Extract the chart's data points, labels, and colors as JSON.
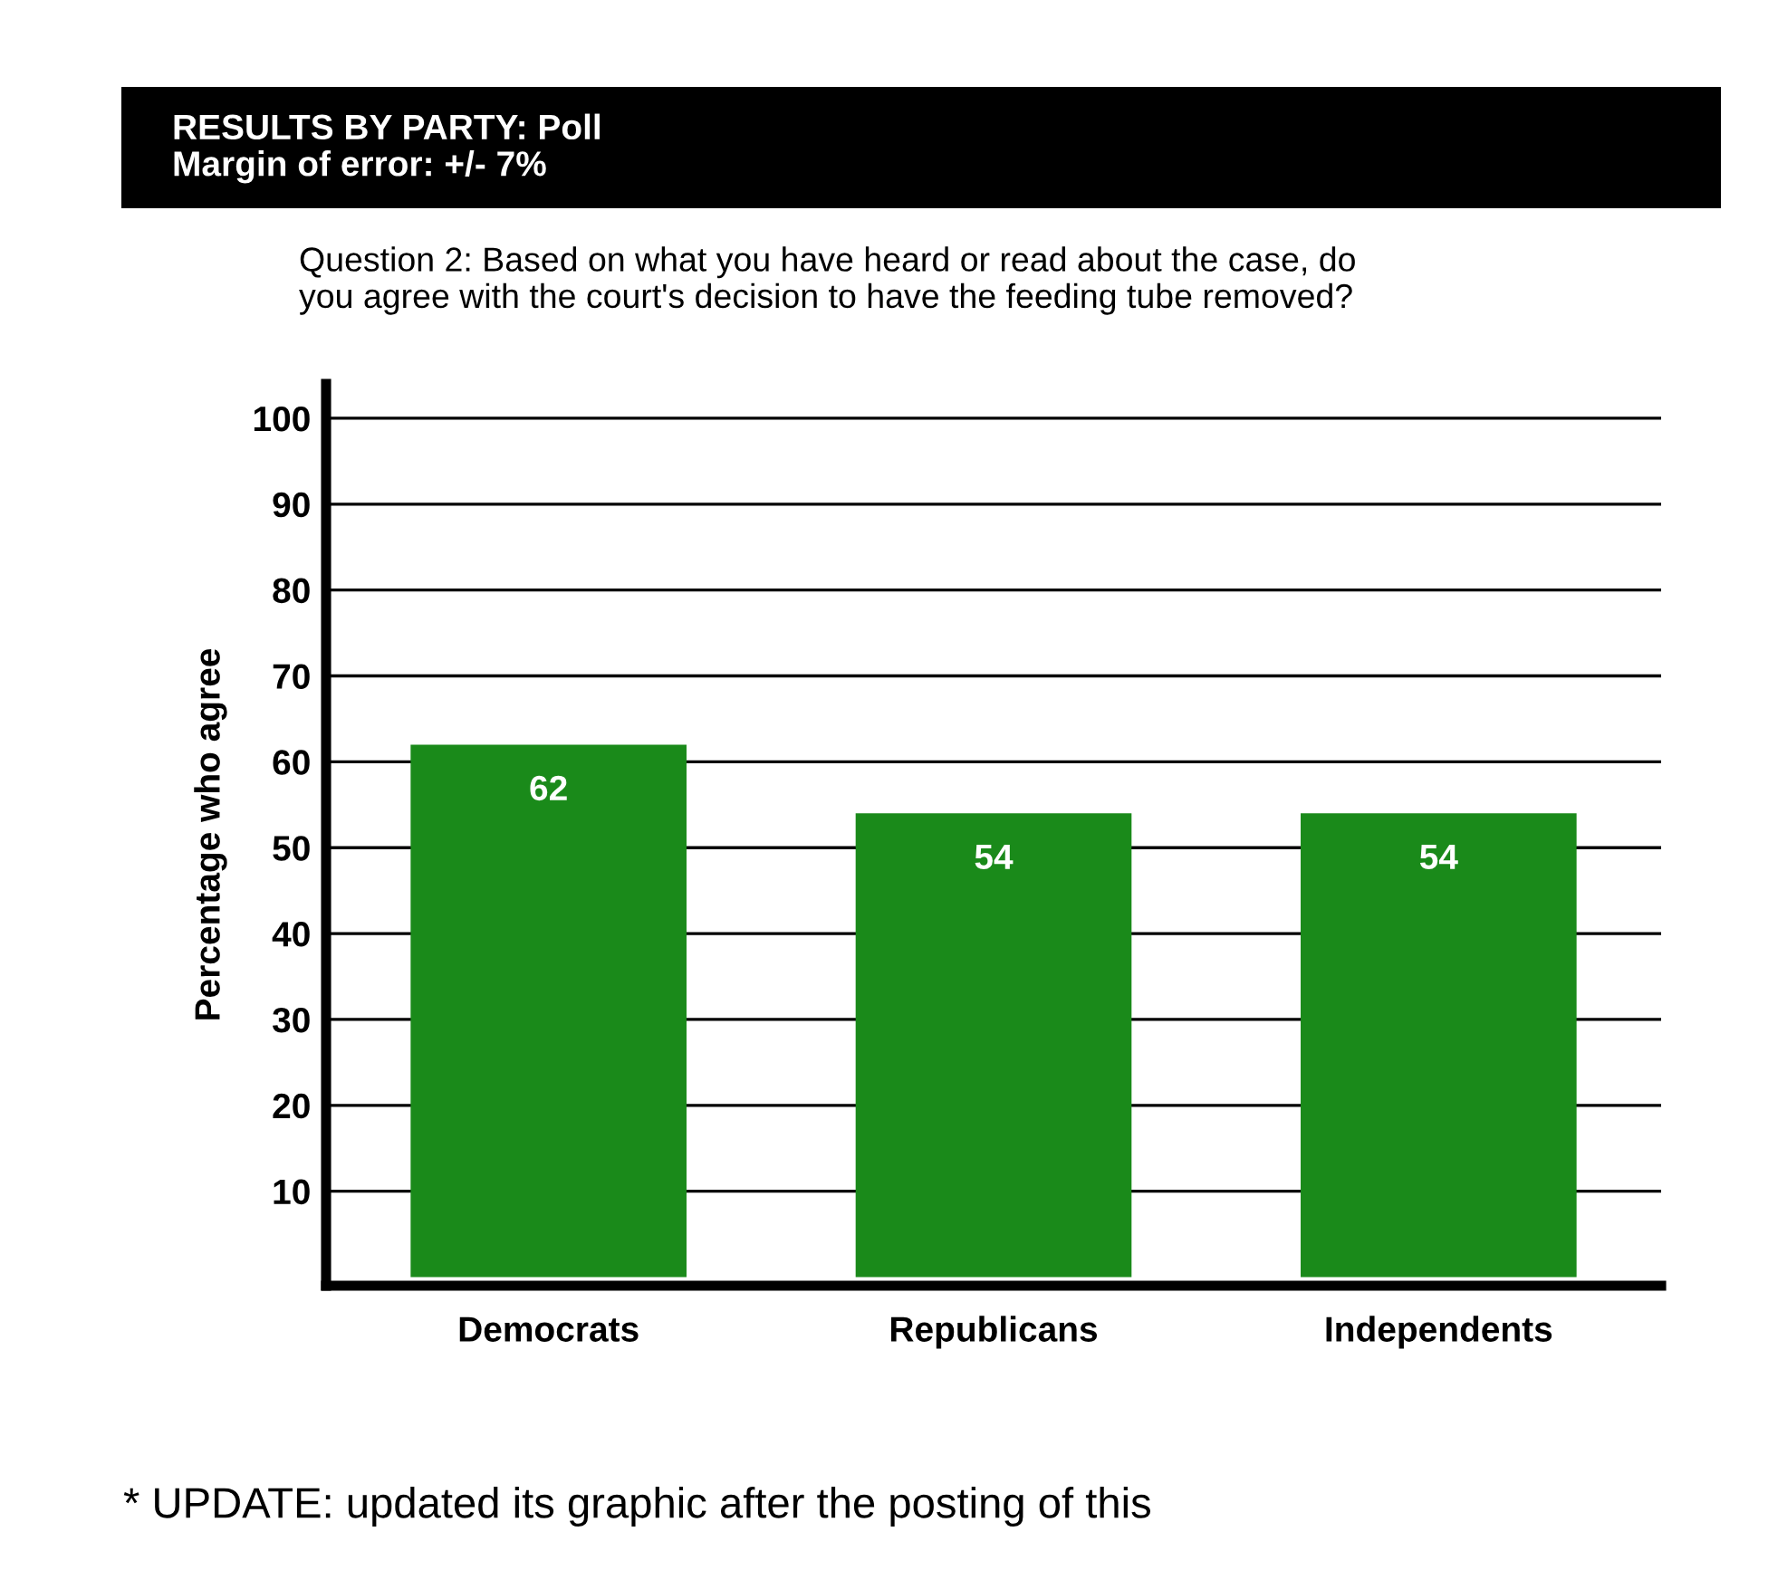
{
  "chart_data": {
    "type": "bar",
    "title": "RESULTS BY PARTY: Poll\nMargin of error: +/- 7%",
    "subtitle": "Question 2: Based on what you have heard or read about the case, do\nyou agree with the court's decision to have the feeding tube removed?",
    "ylabel": "Percentage who agree",
    "categories": [
      "Democrats",
      "Republicans",
      "Independents"
    ],
    "values": [
      62,
      54,
      54
    ],
    "color": "#1a8a1a",
    "data_labels": true,
    "ylim": [
      -1,
      104
    ],
    "yticks": [
      10,
      20,
      30,
      40,
      50,
      60,
      70,
      80,
      90,
      100
    ],
    "grid": "y",
    "annotations": [
      "* UPDATE: updated its graphic after the posting of this"
    ]
  }
}
